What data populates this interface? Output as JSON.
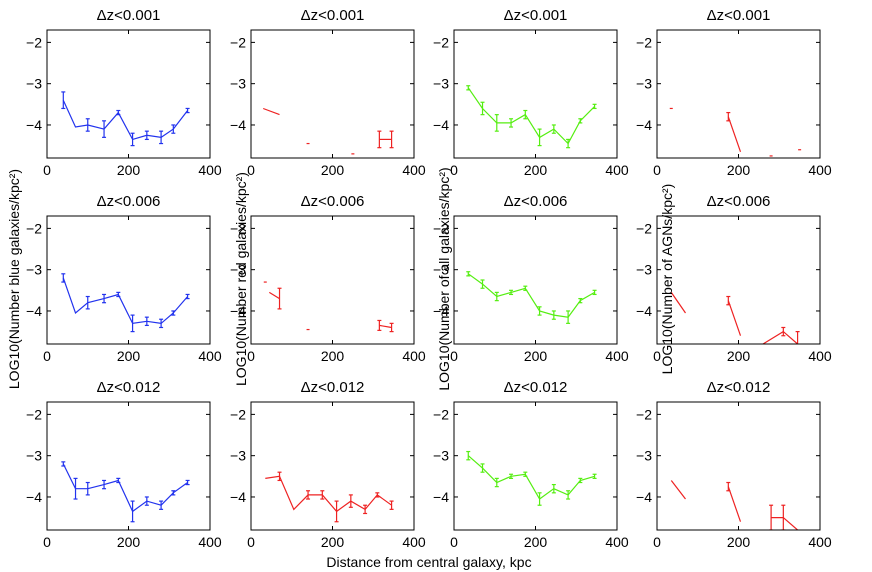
{
  "figure": {
    "xlabel": "Distance from central galaxy, kpc"
  },
  "chart_data": {
    "type": "line",
    "panel_rows": 3,
    "panel_cols": 4,
    "xlim": [
      0,
      400
    ],
    "ylim": [
      -4.8,
      -1.7
    ],
    "xticks": [
      0,
      200,
      400
    ],
    "yticks": [
      -2,
      -3,
      -4
    ],
    "xtick_labels": [
      "0",
      "200",
      "400"
    ],
    "ytick_labels": [
      "−2",
      "−3",
      "−4"
    ],
    "column_ylabels": [
      "LOG10(Number blue galaxies/kpc²)",
      "LOG10(Number red galaxies/kpc²)",
      "LOG10(Number of all galaxies/kpc²)",
      "LOG10(Number of AGNs/kpc²)"
    ],
    "panels": [
      {
        "title": "Δz<0.001",
        "color": "#2233ee",
        "x": [
          40,
          70,
          100,
          140,
          175,
          210,
          245,
          280,
          310,
          345
        ],
        "y": [
          -3.4,
          -4.05,
          -4.0,
          -4.1,
          -3.7,
          -4.35,
          -4.25,
          -4.3,
          -4.1,
          -3.65
        ],
        "err": [
          0.2,
          0,
          0.15,
          0.2,
          0.05,
          0.15,
          0.1,
          0.15,
          0.1,
          0.05
        ],
        "segments": null
      },
      {
        "title": "Δz<0.001",
        "color": "#ee2222",
        "x": [],
        "y": [],
        "err": [],
        "segments": [
          {
            "x": [
              30,
              70
            ],
            "y": [
              -3.6,
              -3.75
            ]
          },
          {
            "x": [
              140
            ],
            "y": [
              -4.45
            ]
          },
          {
            "x": [
              250
            ],
            "y": [
              -4.7
            ]
          },
          {
            "x": [
              315,
              345
            ],
            "y": [
              -4.35,
              -4.35
            ],
            "err": [
              0.2,
              0.2
            ]
          }
        ]
      },
      {
        "title": "Δz<0.001",
        "color": "#55ee11",
        "x": [
          35,
          70,
          105,
          140,
          175,
          210,
          245,
          280,
          310,
          345
        ],
        "y": [
          -3.1,
          -3.6,
          -3.95,
          -3.95,
          -3.75,
          -4.3,
          -4.1,
          -4.45,
          -3.9,
          -3.55
        ],
        "err": [
          0.05,
          0.15,
          0.2,
          0.1,
          0.1,
          0.2,
          0.1,
          0.1,
          0.05,
          0.05
        ],
        "segments": null
      },
      {
        "title": "Δz<0.001",
        "color": "#ee2222",
        "x": [],
        "y": [],
        "err": [],
        "segments": [
          {
            "x": [
              35
            ],
            "y": [
              -3.6
            ]
          },
          {
            "x": [
              175,
              205
            ],
            "y": [
              -3.8,
              -4.65
            ],
            "err": [
              0.1,
              0
            ]
          },
          {
            "x": [
              280
            ],
            "y": [
              -4.75
            ]
          },
          {
            "x": [
              350
            ],
            "y": [
              -4.6
            ]
          }
        ]
      },
      {
        "title": "Δz<0.006",
        "color": "#2233ee",
        "x": [
          40,
          70,
          100,
          140,
          175,
          210,
          245,
          280,
          310,
          345
        ],
        "y": [
          -3.2,
          -4.05,
          -3.8,
          -3.7,
          -3.6,
          -4.3,
          -4.25,
          -4.3,
          -4.05,
          -3.65
        ],
        "err": [
          0.1,
          0,
          0.15,
          0.1,
          0.05,
          0.2,
          0.1,
          0.1,
          0.05,
          0.05
        ],
        "segments": null
      },
      {
        "title": "Δz<0.006",
        "color": "#ee2222",
        "x": [],
        "y": [],
        "err": [],
        "segments": [
          {
            "x": [
              35
            ],
            "y": [
              -3.3
            ]
          },
          {
            "x": [
              45,
              70
            ],
            "y": [
              -3.55,
              -3.7
            ],
            "err": [
              0,
              0.25
            ]
          },
          {
            "x": [
              140
            ],
            "y": [
              -4.45
            ]
          },
          {
            "x": [
              315,
              345
            ],
            "y": [
              -4.35,
              -4.4
            ],
            "err": [
              0.12,
              0.1
            ]
          }
        ]
      },
      {
        "title": "Δz<0.006",
        "color": "#55ee11",
        "x": [
          35,
          70,
          105,
          140,
          175,
          210,
          245,
          280,
          310,
          345
        ],
        "y": [
          -3.1,
          -3.35,
          -3.65,
          -3.55,
          -3.45,
          -4.0,
          -4.1,
          -4.15,
          -3.75,
          -3.55
        ],
        "err": [
          0.05,
          0.1,
          0.1,
          0.05,
          0.05,
          0.1,
          0.1,
          0.15,
          0.05,
          0.05
        ],
        "segments": null
      },
      {
        "title": "Δz<0.006",
        "color": "#ee2222",
        "x": [],
        "y": [],
        "err": [],
        "segments": [
          {
            "x": [
              35,
              70
            ],
            "y": [
              -3.55,
              -4.05
            ]
          },
          {
            "x": [
              175,
              205
            ],
            "y": [
              -3.75,
              -4.6
            ],
            "err": [
              0.1,
              0
            ]
          },
          {
            "x": [
              260,
              310,
              345
            ],
            "y": [
              -4.8,
              -4.5,
              -4.8
            ],
            "err": [
              0,
              0.1,
              0.3
            ]
          }
        ]
      },
      {
        "title": "Δz<0.012",
        "color": "#2233ee",
        "x": [
          40,
          70,
          100,
          140,
          175,
          210,
          245,
          280,
          310,
          345
        ],
        "y": [
          -3.2,
          -3.8,
          -3.8,
          -3.7,
          -3.6,
          -4.35,
          -4.1,
          -4.2,
          -3.9,
          -3.65
        ],
        "err": [
          0.05,
          0.25,
          0.15,
          0.1,
          0.05,
          0.25,
          0.1,
          0.1,
          0.05,
          0.05
        ],
        "segments": null
      },
      {
        "title": "Δz<0.012",
        "color": "#ee2222",
        "x": [
          35,
          70,
          105,
          140,
          175,
          210,
          245,
          280,
          310,
          345
        ],
        "y": [
          -3.55,
          -3.5,
          -4.3,
          -3.95,
          -3.95,
          -4.35,
          -4.1,
          -4.3,
          -3.95,
          -4.2
        ],
        "err": [
          0,
          0.1,
          0,
          0.1,
          0.1,
          0.25,
          0.15,
          0.1,
          0.05,
          0.1
        ],
        "segments": null
      },
      {
        "title": "Δz<0.012",
        "color": "#55ee11",
        "x": [
          35,
          70,
          105,
          140,
          175,
          210,
          245,
          280,
          310,
          345
        ],
        "y": [
          -3.0,
          -3.3,
          -3.65,
          -3.5,
          -3.45,
          -4.05,
          -3.8,
          -3.95,
          -3.6,
          -3.5
        ],
        "err": [
          0.1,
          0.1,
          0.1,
          0.05,
          0.05,
          0.15,
          0.1,
          0.1,
          0.05,
          0.05
        ],
        "segments": null
      },
      {
        "title": "Δz<0.012",
        "color": "#ee2222",
        "x": [],
        "y": [],
        "err": [],
        "segments": [
          {
            "x": [
              35,
              70
            ],
            "y": [
              -3.6,
              -4.05
            ]
          },
          {
            "x": [
              175,
              205
            ],
            "y": [
              -3.75,
              -4.6
            ],
            "err": [
              0.1,
              0
            ]
          },
          {
            "x": [
              280,
              310,
              345
            ],
            "y": [
              -4.5,
              -4.5,
              -4.8
            ],
            "err": [
              0.3,
              0.3,
              0
            ]
          }
        ]
      }
    ]
  }
}
